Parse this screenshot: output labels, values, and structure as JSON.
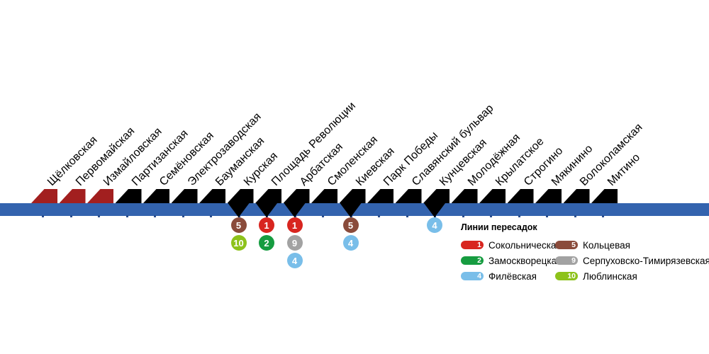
{
  "diagram": {
    "stations": [
      {
        "name": "Щёлковская",
        "marker": "red"
      },
      {
        "name": "Первомайская",
        "marker": "red"
      },
      {
        "name": "Измайловская",
        "marker": "red"
      },
      {
        "name": "Партизанская",
        "marker": "black"
      },
      {
        "name": "Семёновская",
        "marker": "black"
      },
      {
        "name": "Электрозаводская",
        "marker": "black"
      },
      {
        "name": "Бауманская",
        "marker": "black"
      },
      {
        "name": "Курская",
        "marker": "black",
        "transfers": [
          "5",
          "10"
        ]
      },
      {
        "name": "Площадь Революции",
        "marker": "black",
        "transfers": [
          "1",
          "2"
        ]
      },
      {
        "name": "Арбатская",
        "marker": "black",
        "transfers": [
          "1",
          "9",
          "4"
        ]
      },
      {
        "name": "Смоленская",
        "marker": "black"
      },
      {
        "name": "Киевская",
        "marker": "black",
        "transfers": [
          "5",
          "4"
        ]
      },
      {
        "name": "Парк Победы",
        "marker": "black"
      },
      {
        "name": "Славянский бульвар",
        "marker": "black"
      },
      {
        "name": "Кунцевская",
        "marker": "black",
        "transfers": [
          "4"
        ]
      },
      {
        "name": "Молодёжная",
        "marker": "black"
      },
      {
        "name": "Крылатское",
        "marker": "black"
      },
      {
        "name": "Строгино",
        "marker": "black"
      },
      {
        "name": "Мякинино",
        "marker": "black"
      },
      {
        "name": "Волоколамская",
        "marker": "black"
      },
      {
        "name": "Митино",
        "marker": "black"
      }
    ],
    "colors": {
      "line_blue": "#3363AE",
      "marker_black": "#000000",
      "marker_red": "#A21F1F",
      "tick": "#2A4E8F",
      "label_text": "#000000"
    },
    "transfer_line_colors": {
      "1": "#D8251F",
      "2": "#169C40",
      "4": "#79BEE9",
      "5": "#8A4B3B",
      "9": "#A2A2A2",
      "10": "#8DC21B"
    }
  },
  "legend": {
    "title": "Линии пересадок",
    "columns": [
      [
        {
          "num": "1",
          "label": "Сокольническая"
        },
        {
          "num": "2",
          "label": "Замоскворецкая"
        },
        {
          "num": "4",
          "label": "Филёвская"
        }
      ],
      [
        {
          "num": "5",
          "label": "Кольцевая"
        },
        {
          "num": "9",
          "label": "Серпуховско-Тимирязевская"
        },
        {
          "num": "10",
          "label": "Люблинская"
        }
      ]
    ]
  }
}
